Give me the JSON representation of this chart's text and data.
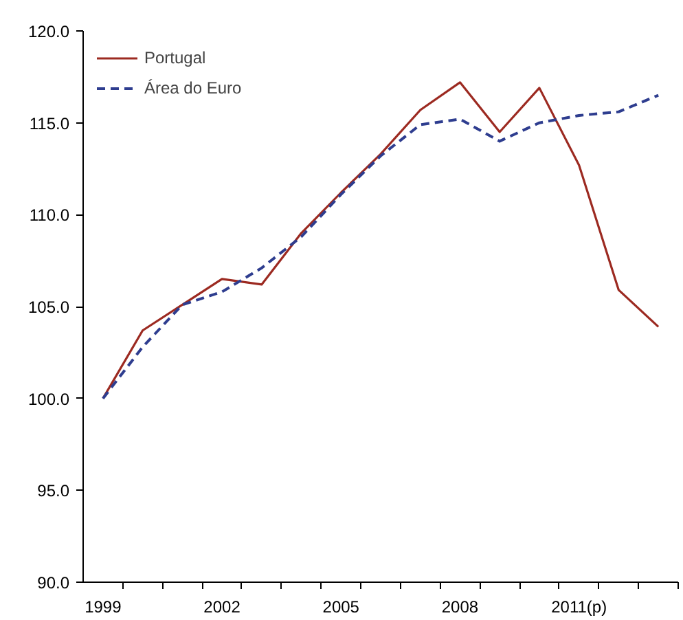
{
  "chart_data": {
    "type": "line",
    "categories": [
      "1999",
      null,
      null,
      "2002",
      null,
      null,
      "2005",
      null,
      null,
      "2008",
      null,
      null,
      "2011(p)",
      null,
      null
    ],
    "series": [
      {
        "name": "Portugal",
        "color": "#9c2a21",
        "line_style": "solid",
        "values": [
          100.0,
          103.7,
          105.1,
          106.5,
          106.2,
          109.0,
          111.2,
          113.3,
          115.7,
          117.2,
          114.5,
          116.9,
          112.7,
          105.9,
          103.9
        ]
      },
      {
        "name": "Área do Euro",
        "color": "#2e3d8f",
        "line_style": "dashed",
        "values": [
          100.0,
          102.8,
          105.1,
          105.8,
          107.1,
          108.8,
          111.1,
          113.2,
          114.9,
          115.2,
          114.0,
          115.0,
          115.4,
          115.6,
          116.5
        ]
      }
    ],
    "ylim": [
      90,
      120
    ],
    "yticks": [
      {
        "value": 90,
        "label": "90.0"
      },
      {
        "value": 95,
        "label": "95.0"
      },
      {
        "value": 100,
        "label": "100.0"
      },
      {
        "value": 105,
        "label": "105.0"
      },
      {
        "value": 110,
        "label": "110.0"
      },
      {
        "value": 115,
        "label": "115.0"
      },
      {
        "value": 120,
        "label": "120.0"
      }
    ],
    "grid": false,
    "legend": "top left",
    "marker": "none"
  }
}
